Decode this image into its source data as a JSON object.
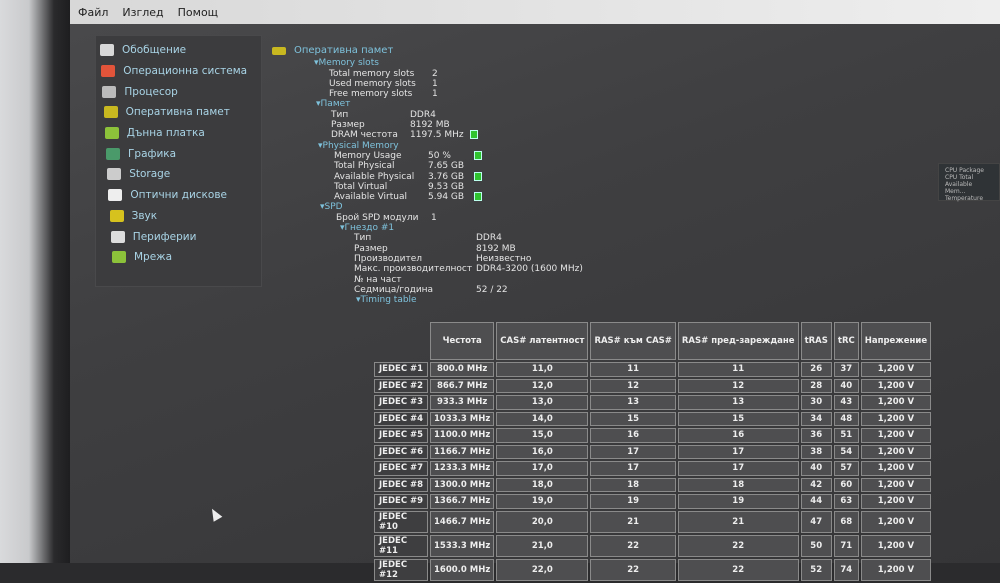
{
  "menu": [
    "Файл",
    "Изглед",
    "Помощ"
  ],
  "sidebar": [
    {
      "label": "Обобщение",
      "icon": "clipboard-icon",
      "color": "#d8d8d8"
    },
    {
      "label": "Операционна система",
      "icon": "windows-icon",
      "color": "#e2543a"
    },
    {
      "label": "Процесор",
      "icon": "cpu-icon",
      "color": "#bbbbbb"
    },
    {
      "label": "Оперативна памет",
      "icon": "ram-icon",
      "color": "#c8b820"
    },
    {
      "label": "Дънна платка",
      "icon": "motherboard-icon",
      "color": "#8cc23a"
    },
    {
      "label": "Графика",
      "icon": "monitor-icon",
      "color": "#4a9a6a"
    },
    {
      "label": "Storage",
      "icon": "hdd-icon",
      "color": "#cccccc"
    },
    {
      "label": "Оптични дискове",
      "icon": "disc-icon",
      "color": "#eeeeee"
    },
    {
      "label": "Звук",
      "icon": "speaker-icon",
      "color": "#d6c21e"
    },
    {
      "label": "Периферии",
      "icon": "mouse-icon",
      "color": "#dddddd"
    },
    {
      "label": "Мрежа",
      "icon": "network-icon",
      "color": "#8cc23a"
    }
  ],
  "main": {
    "title": "Оперативна памет",
    "slots": {
      "title": "Memory slots",
      "rows": [
        [
          "Total memory slots",
          "2"
        ],
        [
          "Used memory slots",
          "1"
        ],
        [
          "Free memory slots",
          "1"
        ]
      ]
    },
    "memory": {
      "title": "Памет",
      "rows": [
        [
          "Тип",
          "DDR4",
          false
        ],
        [
          "Размер",
          "8192 MB",
          false
        ],
        [
          "DRAM честота",
          "1197.5 MHz",
          true
        ]
      ]
    },
    "physical": {
      "title": "Physical Memory",
      "rows": [
        [
          "Memory Usage",
          "50 %",
          true
        ],
        [
          "Total Physical",
          "7.65 GB",
          false
        ],
        [
          "Available Physical",
          "3.76 GB",
          true
        ],
        [
          "Total Virtual",
          "9.53 GB",
          false
        ],
        [
          "Available Virtual",
          "5.94 GB",
          true
        ]
      ]
    },
    "spd": {
      "title": "SPD",
      "count_label": "Брой SPD модули",
      "count": "1",
      "slot": {
        "title": "Гнездо #1",
        "rows": [
          [
            "Тип",
            "DDR4"
          ],
          [
            "Размер",
            "8192 MB"
          ],
          [
            "Производител",
            "Неизвестно"
          ],
          [
            "Макс. производителност",
            "DDR4-3200 (1600 MHz)"
          ],
          [
            "№ на част",
            ""
          ],
          [
            "Седмица/година",
            "52 / 22"
          ]
        ]
      },
      "timing_title": "Timing table"
    }
  },
  "timing": {
    "headers": [
      "Честота",
      "CAS# латентност",
      "RAS# към CAS#",
      "RAS# пред-зареждане",
      "tRAS",
      "tRC",
      "Напрежение"
    ],
    "rows": [
      [
        "JEDEC #1",
        "800.0 MHz",
        "11,0",
        "11",
        "11",
        "26",
        "37",
        "1,200 V"
      ],
      [
        "JEDEC #2",
        "866.7 MHz",
        "12,0",
        "12",
        "12",
        "28",
        "40",
        "1,200 V"
      ],
      [
        "JEDEC #3",
        "933.3 MHz",
        "13,0",
        "13",
        "13",
        "30",
        "43",
        "1,200 V"
      ],
      [
        "JEDEC #4",
        "1033.3 MHz",
        "14,0",
        "15",
        "15",
        "34",
        "48",
        "1,200 V"
      ],
      [
        "JEDEC #5",
        "1100.0 MHz",
        "15,0",
        "16",
        "16",
        "36",
        "51",
        "1,200 V"
      ],
      [
        "JEDEC #6",
        "1166.7 MHz",
        "16,0",
        "17",
        "17",
        "38",
        "54",
        "1,200 V"
      ],
      [
        "JEDEC #7",
        "1233.3 MHz",
        "17,0",
        "17",
        "17",
        "40",
        "57",
        "1,200 V"
      ],
      [
        "JEDEC #8",
        "1300.0 MHz",
        "18,0",
        "18",
        "18",
        "42",
        "60",
        "1,200 V"
      ],
      [
        "JEDEC #9",
        "1366.7 MHz",
        "19,0",
        "19",
        "19",
        "44",
        "63",
        "1,200 V"
      ],
      [
        "JEDEC #10",
        "1466.7 MHz",
        "20,0",
        "21",
        "21",
        "47",
        "68",
        "1,200 V"
      ],
      [
        "JEDEC #11",
        "1533.3 MHz",
        "21,0",
        "22",
        "22",
        "50",
        "71",
        "1,200 V"
      ],
      [
        "JEDEC #12",
        "1600.0 MHz",
        "22,0",
        "22",
        "22",
        "52",
        "74",
        "1,200 V"
      ]
    ]
  },
  "widget": [
    "CPU Package",
    "CPU Total",
    "Available Mem...",
    "Temperature"
  ]
}
